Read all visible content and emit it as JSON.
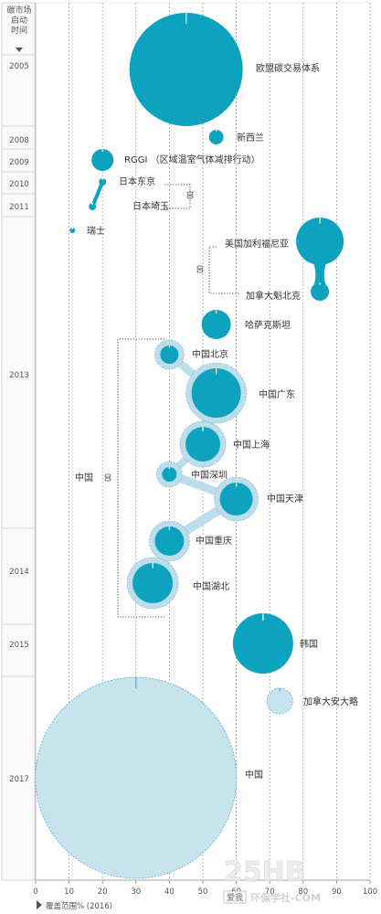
{
  "chart_data": {
    "type": "bubble",
    "year_header": "碳市场启动时间",
    "xlabel": "覆盖范围% (2016)",
    "xlim": [
      0,
      100
    ],
    "x_ticks": [
      "0",
      "10",
      "20",
      "30",
      "40",
      "50",
      "60",
      "70",
      "80",
      "90",
      "100"
    ],
    "years": [
      "2005",
      "2008",
      "2009",
      "2010",
      "2011",
      "2013",
      "2014",
      "2015",
      "2017"
    ],
    "markets": [
      {
        "name": "欧盟碳交易体系",
        "year": "2005",
        "coverage": 45,
        "filled": true
      },
      {
        "name": "新西兰",
        "year": "2008",
        "coverage": 54,
        "filled": true
      },
      {
        "name": "RGGI （区域温室气体减排行动）",
        "year": "2009",
        "coverage": 20,
        "filled": true
      },
      {
        "name": "日本东京",
        "year": "2010",
        "coverage": 20,
        "filled": true
      },
      {
        "name": "日本埼玉",
        "year": "2011",
        "coverage": 17,
        "filled": true
      },
      {
        "name": "瑞士",
        "year": "2011",
        "coverage": 11,
        "filled": true
      },
      {
        "name": "美国加利福尼亚",
        "year": "2013",
        "coverage": 85,
        "filled": true
      },
      {
        "name": "加拿大魁北克",
        "year": "2013",
        "coverage": 85,
        "filled": true
      },
      {
        "name": "哈萨克斯坦",
        "year": "2013",
        "coverage": 54,
        "filled": true
      },
      {
        "name": "中国北京",
        "year": "2013",
        "coverage": 40,
        "filled": true
      },
      {
        "name": "中国广东",
        "year": "2013",
        "coverage": 54,
        "filled": true
      },
      {
        "name": "中国上海",
        "year": "2013",
        "coverage": 50,
        "filled": true
      },
      {
        "name": "中国深圳",
        "year": "2013",
        "coverage": 40,
        "filled": true
      },
      {
        "name": "中国天津",
        "year": "2013",
        "coverage": 60,
        "filled": true
      },
      {
        "name": "中国重庆",
        "year": "2014",
        "coverage": 40,
        "filled": true
      },
      {
        "name": "中国湖北",
        "year": "2014",
        "coverage": 35,
        "filled": true
      },
      {
        "name": "韩国",
        "year": "2015",
        "coverage": 68,
        "filled": true
      },
      {
        "name": "加拿大安大略",
        "year": "2017",
        "coverage": 73,
        "filled": false
      },
      {
        "name": "中国",
        "year": "2017",
        "coverage": 30,
        "filled": false
      }
    ],
    "groups": [
      {
        "name": "中国",
        "note": "pilot markets bracket"
      }
    ],
    "colors": {
      "filled": "#0da2bd",
      "planned": "#c7e3ee",
      "halo": "#bcdde9",
      "grid": "#bbbbbb"
    }
  },
  "watermark": {
    "logo": "25HB",
    "text": "环保学社-COM",
    "badge": "爱我"
  }
}
